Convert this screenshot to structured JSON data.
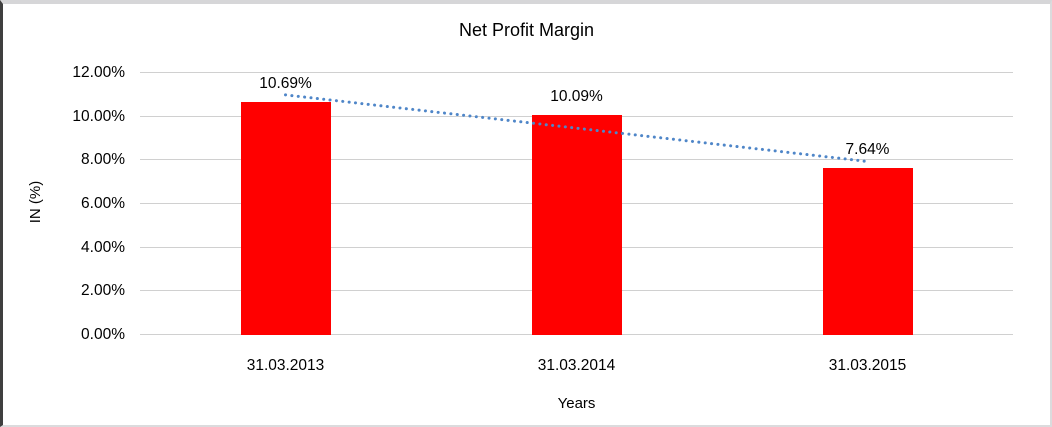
{
  "chart": {
    "title": "Net Profit Margin",
    "y_axis_title": "IN (%)",
    "x_axis_title": "Years"
  },
  "chart_data": {
    "type": "bar",
    "title": "Net Profit Margin",
    "xlabel": "Years",
    "ylabel": "IN (%)",
    "categories": [
      "31.03.2013",
      "31.03.2014",
      "31.03.2015"
    ],
    "values": [
      10.69,
      10.09,
      7.64
    ],
    "data_labels": [
      "10.69%",
      "10.09%",
      "7.64%"
    ],
    "ylim": [
      0,
      12
    ],
    "y_tick_step": 2,
    "y_tick_labels": [
      "0.00%",
      "2.00%",
      "4.00%",
      "6.00%",
      "8.00%",
      "10.00%",
      "12.00%"
    ],
    "grid": true,
    "legend": "none",
    "bar_color": "#FF0000",
    "gridline_color": "#d0d0d0",
    "trendline": {
      "type": "linear",
      "style": "dotted",
      "color": "#4F86C8"
    }
  }
}
